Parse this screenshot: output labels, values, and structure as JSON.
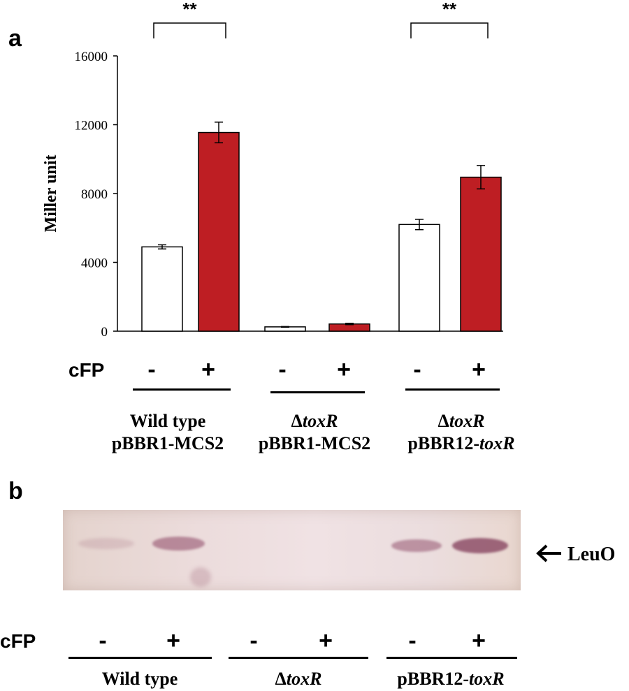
{
  "panel_a": {
    "letter": "a",
    "cfp_label": "cFP",
    "signs": [
      "-",
      "+",
      "-",
      "+",
      "-",
      "+"
    ],
    "significance": [
      "**",
      "**"
    ],
    "groups": [
      {
        "line1": "Wild type",
        "line2": "pBBR1-MCS2"
      },
      {
        "line1": "ΔtoxR",
        "line2": "pBBR1-MCS2"
      },
      {
        "line1": "ΔtoxR",
        "line2": "pBBR12-toxR"
      }
    ]
  },
  "chart_data": {
    "type": "bar",
    "title": "",
    "xlabel": "",
    "ylabel": "Miller unit",
    "ylim": [
      0,
      16000
    ],
    "yticks": [
      "0",
      "4000",
      "8000",
      "12000",
      "16000"
    ],
    "categories": [
      "Wild type -",
      "Wild type +",
      "ΔtoxR -",
      "ΔtoxR +",
      "ΔtoxR pBBR12-toxR -",
      "ΔtoxR pBBR12-toxR +"
    ],
    "values": [
      4900,
      11550,
      250,
      420,
      6200,
      8950
    ],
    "errors": [
      120,
      600,
      20,
      40,
      300,
      680
    ],
    "bar_colors": [
      "#ffffff",
      "#be1e23",
      "#ffffff",
      "#be1e23",
      "#ffffff",
      "#be1e23"
    ]
  },
  "panel_b": {
    "letter": "b",
    "band_label": "LeuO",
    "arrow_icon": "left-arrow-icon",
    "cfp_label": "cFP",
    "signs": [
      "-",
      "+",
      "-",
      "+",
      "-",
      "+"
    ],
    "lane_intensity": [
      0.15,
      0.55,
      0.0,
      0.0,
      0.5,
      0.85
    ],
    "groups": [
      "Wild type",
      "ΔtoxR",
      "pBBR12-toxR"
    ]
  }
}
